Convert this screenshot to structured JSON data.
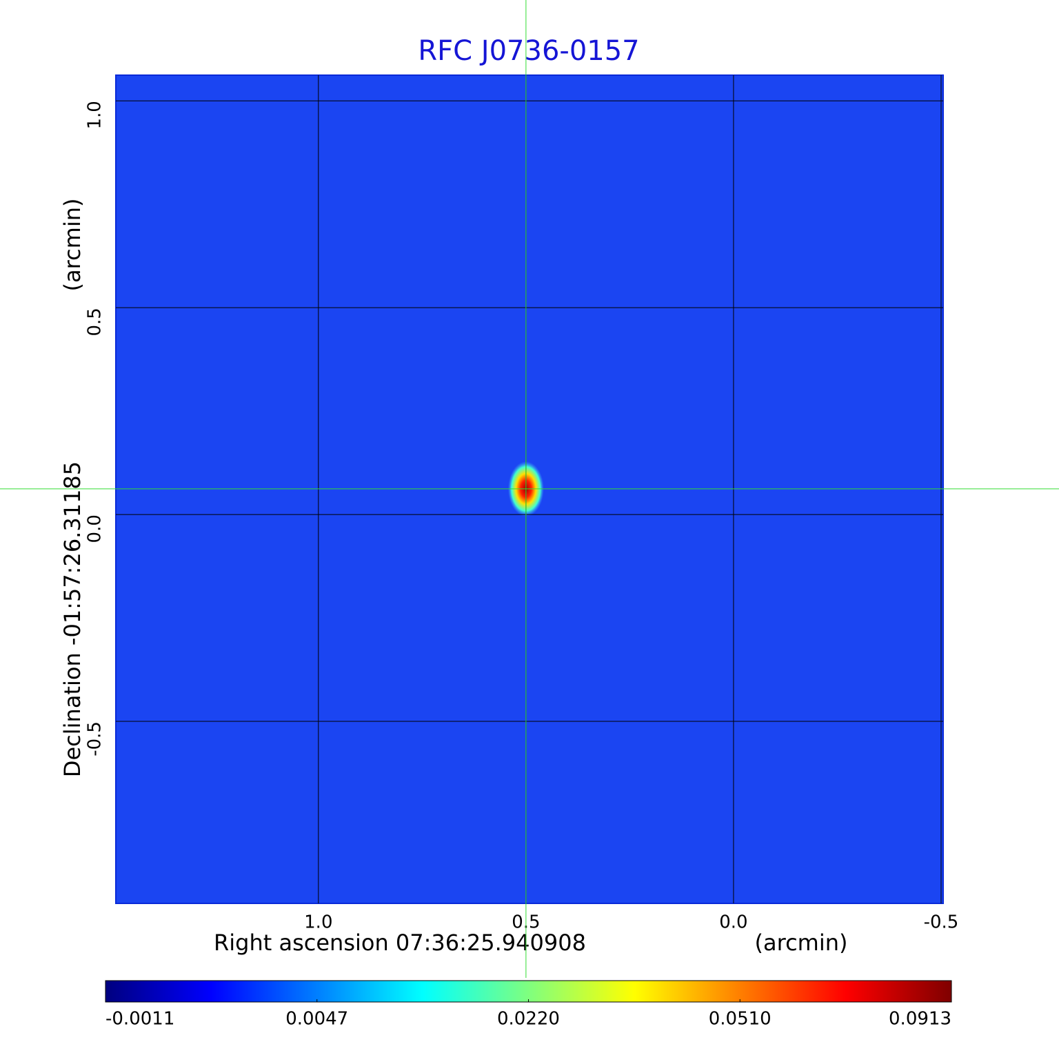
{
  "chart_data": {
    "type": "image",
    "title": "RFC J0736-0157",
    "x_label": "Right ascension  07:36:25.940908",
    "x_unit": "(arcmin)",
    "y_label": "Declination  -01:57:26.31185",
    "y_unit": "(arcmin)",
    "xlim": [
      1.488,
      -0.505
    ],
    "ylim": [
      -0.94,
      1.062
    ],
    "xticks": [
      {
        "value": 1,
        "label": "1.0"
      },
      0.5,
      {
        "value": 0,
        "label": "0.0"
      },
      -0.5
    ],
    "yticks": [
      {
        "value": 1,
        "label": "1.0"
      },
      0.5,
      {
        "value": 0,
        "label": "0.0"
      },
      -0.5
    ],
    "grid": true,
    "background_color": "#1b45f2",
    "crosshair": {
      "x": 0.5,
      "y": 0.062,
      "color": "#33dd33"
    },
    "source": {
      "x": 0.5,
      "y": 0.062,
      "value": 0.0913
    },
    "colormap": [
      "#00007f",
      "#0000ff",
      "#007fff",
      "#00ffff",
      "#7fff7f",
      "#ffff00",
      "#ff7f00",
      "#ff0000",
      "#7f0000"
    ],
    "colorbar_ticks": [
      {
        "value": -0.0011,
        "label": "-0.0011"
      },
      {
        "value": 0.0047,
        "label": "0.0047"
      },
      {
        "value": 0.022,
        "label": "0.0220"
      },
      {
        "value": 0.051,
        "label": "0.0510"
      },
      {
        "value": 0.0913,
        "label": "0.0913"
      }
    ]
  }
}
